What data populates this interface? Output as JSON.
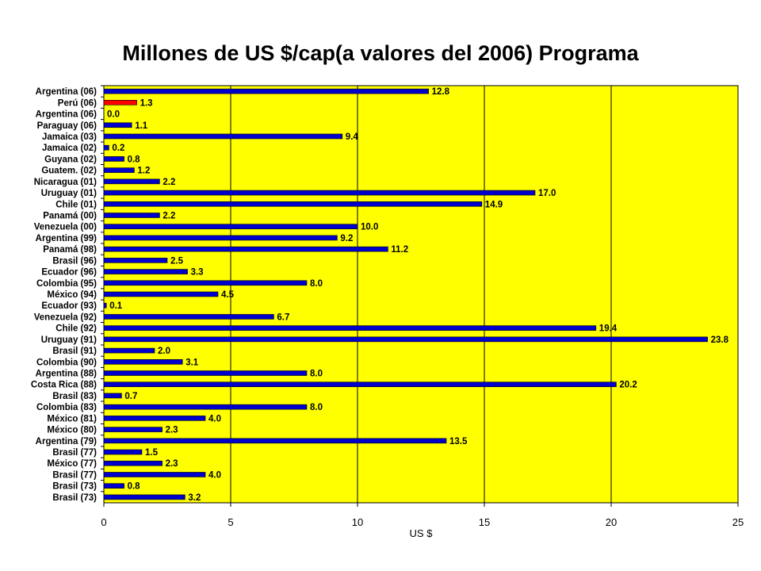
{
  "chart_data": {
    "type": "bar",
    "orientation": "horizontal",
    "title": "Millones de US $/cap(a valores del 2006) Programa",
    "xlabel": "US $",
    "ylabel": "",
    "xlim": [
      0,
      25
    ],
    "xticks": [
      0,
      5,
      10,
      15,
      20,
      25
    ],
    "grid": true,
    "legend": "none",
    "colors": {
      "plot_bg": "#ffff00",
      "bar": "#0000cc",
      "highlight": "#ff0000",
      "grid": "#000000"
    },
    "categories": [
      "Argentina (06)",
      "Perú (06)",
      "Argentina (06)",
      "Paraguay (06)",
      "Jamaica (03)",
      "Jamaica (02)",
      "Guyana (02)",
      "Guatem. (02)",
      "Nicaragua (01)",
      "Uruguay (01)",
      "Chile (01)",
      "Panamá (00)",
      "Venezuela (00)",
      "Argentina (99)",
      "Panamá (98)",
      "Brasil (96)",
      "Ecuador (96)",
      "Colombia (95)",
      "México (94)",
      "Ecuador (93)",
      "Venezuela (92)",
      "Chile (92)",
      "Uruguay (91)",
      "Brasil (91)",
      "Colombia (90)",
      "Argentina (88)",
      "Costa Rica (88)",
      "Brasil (83)",
      "Colombia (83)",
      "México (81)",
      "México (80)",
      "Argentina (79)",
      "Brasil (77)",
      "México (77)",
      "Brasil (77)",
      "Brasil (73)",
      "Brasil (73)"
    ],
    "values": [
      12.8,
      1.3,
      0.0,
      1.1,
      9.4,
      0.2,
      0.8,
      1.2,
      2.2,
      17.0,
      14.9,
      2.2,
      10.0,
      9.2,
      11.2,
      2.5,
      3.3,
      8.0,
      4.5,
      0.1,
      6.7,
      19.4,
      23.8,
      2.0,
      3.1,
      8.0,
      20.2,
      0.7,
      8.0,
      4.0,
      2.3,
      13.5,
      1.5,
      2.3,
      4.0,
      0.8,
      3.2
    ],
    "value_labels": [
      "12.8",
      "1.3",
      "0.0",
      "1.1",
      "9.4",
      "0.2",
      "0.8",
      "1.2",
      "2.2",
      "17.0",
      "14.9",
      "2.2",
      "10.0",
      "9.2",
      "11.2",
      "2.5",
      "3.3",
      "8.0",
      "4.5",
      "0.1",
      "6.7",
      "19.4",
      "23.8",
      "2.0",
      "3.1",
      "8.0",
      "20.2",
      "0.7",
      "8.0",
      "4.0",
      "2.3",
      "13.5",
      "1.5",
      "2.3",
      "4.0",
      "0.8",
      "3.2"
    ],
    "highlight_index": 1
  }
}
